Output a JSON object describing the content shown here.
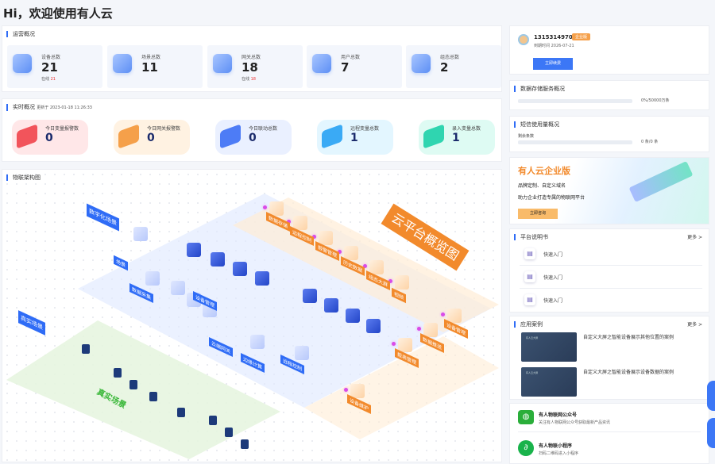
{
  "page_title": "Hi，欢迎使用有人云",
  "ops": {
    "title": "运营概况",
    "online_label": "在线",
    "stats": [
      {
        "label": "设备总数",
        "value": "21",
        "online": "21",
        "icon": "device-list-icon"
      },
      {
        "label": "场景总数",
        "value": "11",
        "icon": "scene-pie-icon"
      },
      {
        "label": "网关总数",
        "value": "18",
        "online": "18",
        "icon": "gateway-cube-icon"
      },
      {
        "label": "用户总数",
        "value": "7",
        "icon": "user-icon"
      },
      {
        "label": "组态总数",
        "value": "2",
        "icon": "config-icon"
      }
    ]
  },
  "realtime": {
    "title": "实时概况",
    "updated": "更新于 2023-01-18 11:26:33",
    "items": [
      {
        "label": "今日变量报警数",
        "value": "0",
        "color": "#f2545b"
      },
      {
        "label": "今日网关报警数",
        "value": "0",
        "color": "#f5a04a"
      },
      {
        "label": "今日联动总数",
        "value": "0",
        "color": "#4d7cf6"
      },
      {
        "label": "远程变量总数",
        "value": "1",
        "color": "#3aaaf5"
      },
      {
        "label": "录入变量总数",
        "value": "1",
        "color": "#2fd5b0"
      }
    ]
  },
  "arch": {
    "title": "物联架构图",
    "cloud_title": "云平台概览图",
    "digital_label": "数字化场景",
    "physical_label": "真实场景",
    "physical_big": "真实场景",
    "nodes": [
      "场景",
      "数据采集",
      "设备管理",
      "云端网关",
      "边缘计算",
      "远程控制"
    ],
    "cloud_labels": [
      "数据存储",
      "远程控制",
      "报警管理",
      "历史数据",
      "组态大屏",
      "视频",
      "设备管理",
      "数据推送",
      "报表管理",
      "设备维护"
    ]
  },
  "account": {
    "phone": "13153149704",
    "badge": "企业版",
    "expire": "到期时间 2026-07-21",
    "renew": "立即续费"
  },
  "storage": {
    "title": "数据存储服务概况",
    "usage": "0%/50000万条",
    "fill": 0
  },
  "sms": {
    "title": "短信使用量概况",
    "label": "剩余条数",
    "usage": "0 条/0 条",
    "fill": 0
  },
  "promo": {
    "title": "有人云企业版",
    "line1": "品牌定制、自定义域名",
    "line2": "助力企业打造专属的物联网平台",
    "button": "立即咨询"
  },
  "manual": {
    "title": "平台说明书",
    "more": "更多 >",
    "items": [
      "快速入门",
      "快速入门",
      "快速入门"
    ]
  },
  "cases": {
    "title": "应用案例",
    "more": "更多 >",
    "items": [
      {
        "thumb": "有人云大屏",
        "text": "自定义大屏之智能设备展示其他位置的案例"
      },
      {
        "thumb": "有人云大屏",
        "text": "自定义大屏之智能设备展示设备数据的案例"
      }
    ]
  },
  "social": [
    {
      "title": "有人物联网公众号",
      "desc": "关注有人物联网公众号获取最新产品资讯",
      "icon": "wechat-icon",
      "color": "#2aae3a"
    },
    {
      "title": "有人物联小程序",
      "desc": "扫码二维码进入小程序",
      "icon": "mini-program-icon",
      "color": "#19b34b"
    }
  ]
}
